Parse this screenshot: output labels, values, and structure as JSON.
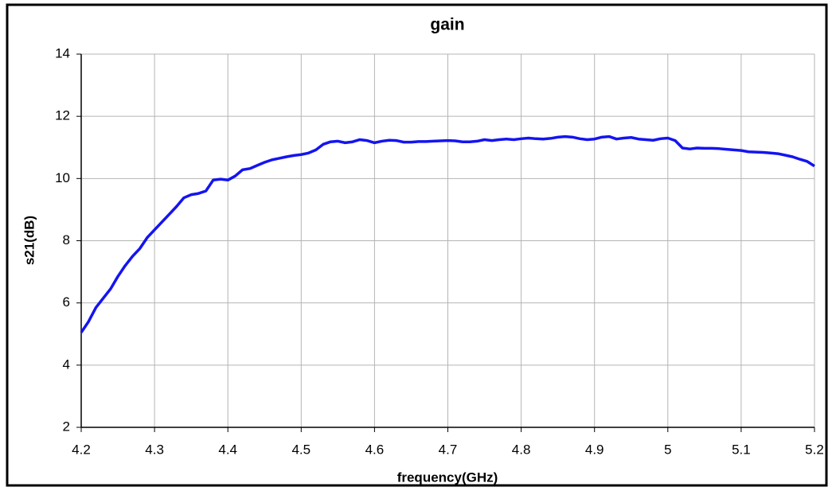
{
  "chart_data": {
    "type": "line",
    "title": "gain",
    "xlabel": "frequency(GHz)",
    "ylabel": "s21(dB)",
    "x": [
      4.2,
      4.21,
      4.22,
      4.23,
      4.24,
      4.25,
      4.26,
      4.27,
      4.28,
      4.29,
      4.3,
      4.31,
      4.32,
      4.33,
      4.34,
      4.35,
      4.36,
      4.37,
      4.38,
      4.39,
      4.4,
      4.41,
      4.42,
      4.43,
      4.44,
      4.45,
      4.46,
      4.47,
      4.48,
      4.49,
      4.5,
      4.51,
      4.52,
      4.53,
      4.54,
      4.55,
      4.56,
      4.57,
      4.58,
      4.59,
      4.6,
      4.61,
      4.62,
      4.63,
      4.64,
      4.65,
      4.66,
      4.67,
      4.68,
      4.69,
      4.7,
      4.71,
      4.72,
      4.73,
      4.74,
      4.75,
      4.76,
      4.77,
      4.78,
      4.79,
      4.8,
      4.81,
      4.82,
      4.83,
      4.84,
      4.85,
      4.86,
      4.87,
      4.88,
      4.89,
      4.9,
      4.91,
      4.92,
      4.93,
      4.94,
      4.95,
      4.96,
      4.97,
      4.98,
      4.99,
      5.0,
      5.01,
      5.02,
      5.03,
      5.04,
      5.05,
      5.06,
      5.07,
      5.08,
      5.09,
      5.1,
      5.11,
      5.12,
      5.13,
      5.14,
      5.15,
      5.16,
      5.17,
      5.18,
      5.19,
      5.2
    ],
    "series": [
      {
        "name": "s21",
        "color": "#1414f0",
        "values": [
          5.05,
          5.4,
          5.85,
          6.15,
          6.45,
          6.85,
          7.2,
          7.5,
          7.75,
          8.1,
          8.35,
          8.6,
          8.85,
          9.1,
          9.38,
          9.48,
          9.52,
          9.6,
          9.95,
          9.98,
          9.95,
          10.08,
          10.28,
          10.32,
          10.42,
          10.52,
          10.6,
          10.65,
          10.7,
          10.74,
          10.77,
          10.82,
          10.92,
          11.1,
          11.18,
          11.2,
          11.15,
          11.18,
          11.25,
          11.22,
          11.15,
          11.2,
          11.23,
          11.22,
          11.17,
          11.17,
          11.19,
          11.19,
          11.2,
          11.21,
          11.22,
          11.21,
          11.18,
          11.18,
          11.2,
          11.25,
          11.22,
          11.25,
          11.27,
          11.25,
          11.28,
          11.3,
          11.28,
          11.27,
          11.29,
          11.33,
          11.35,
          11.33,
          11.28,
          11.25,
          11.27,
          11.33,
          11.35,
          11.27,
          11.3,
          11.32,
          11.27,
          11.25,
          11.23,
          11.28,
          11.3,
          11.22,
          10.98,
          10.95,
          10.98,
          10.97,
          10.97,
          10.96,
          10.94,
          10.92,
          10.9,
          10.86,
          10.85,
          10.84,
          10.82,
          10.8,
          10.75,
          10.7,
          10.62,
          10.55,
          10.4
        ]
      }
    ],
    "xlim": [
      4.2,
      5.2
    ],
    "xticks": [
      4.2,
      4.3,
      4.4,
      4.5,
      4.6,
      4.7,
      4.8,
      4.9,
      5,
      5.1,
      5.2
    ],
    "ylim": [
      2,
      14
    ],
    "yticks": [
      2,
      4,
      6,
      8,
      10,
      12,
      14
    ],
    "grid": true
  }
}
